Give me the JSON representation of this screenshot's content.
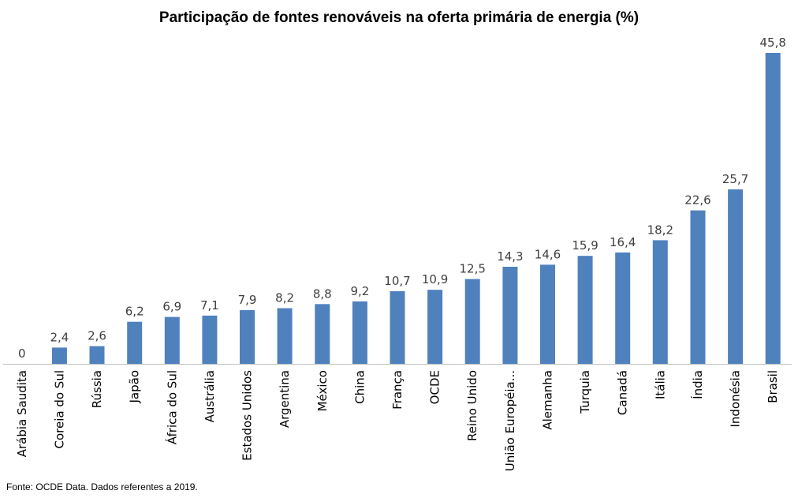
{
  "chart_data": {
    "type": "bar",
    "title": "Participação de fontes renováveis na oferta primária de energia (%)",
    "categories": [
      "Arábia Saudita",
      "Coreia do Sul",
      "Rússia",
      "Japão",
      "África do Sul",
      "Austrália",
      "Estados Unidos",
      "Argentina",
      "México",
      "China",
      "França",
      "OCDE",
      "Reino Unido",
      "União Européia...",
      "Alemanha",
      "Turquia",
      "Canadá",
      "Itália",
      "Índia",
      "Indonésia",
      "Brasil"
    ],
    "values": [
      0,
      2.4,
      2.6,
      6.2,
      6.9,
      7.1,
      7.9,
      8.2,
      8.8,
      9.2,
      10.7,
      10.9,
      12.5,
      14.3,
      14.6,
      15.9,
      16.4,
      18.2,
      22.6,
      25.7,
      45.8
    ],
    "value_labels": [
      "0",
      "2,4",
      "2,6",
      "6,2",
      "6,9",
      "7,1",
      "7,9",
      "8,2",
      "8,8",
      "9,2",
      "10,7",
      "10,9",
      "12,5",
      "14,3",
      "14,6",
      "15,9",
      "16,4",
      "18,2",
      "22,6",
      "25,7",
      "45,8"
    ],
    "ylim": [
      0,
      45.8
    ],
    "grid": false,
    "legend": "none",
    "bar_color": "#4f81bd"
  },
  "footer": {
    "source": "Fonte: OCDE Data. Dados referentes a 2019."
  }
}
